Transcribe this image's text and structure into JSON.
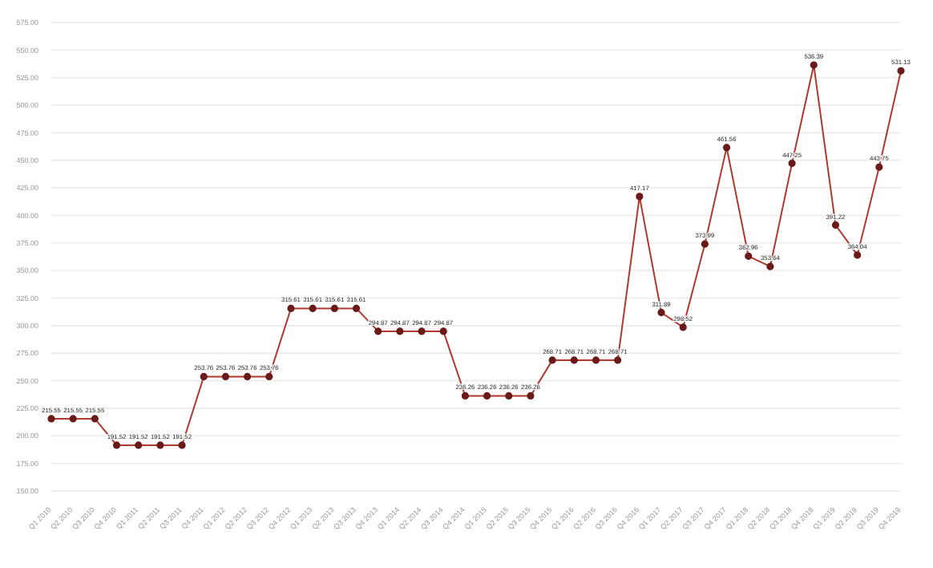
{
  "chart_data": {
    "type": "line",
    "categories": [
      "Q1 2010",
      "Q2 2010",
      "Q3 2010",
      "Q4 2010",
      "Q1 2011",
      "Q2 2011",
      "Q3 2011",
      "Q4 2011",
      "Q1 2012",
      "Q2 2012",
      "Q3 2012",
      "Q4 2012",
      "Q1 2013",
      "Q2 2013",
      "Q3 2013",
      "Q4 2013",
      "Q1 2014",
      "Q2 2014",
      "Q3 2014",
      "Q4 2014",
      "Q1 2015",
      "Q2 2015",
      "Q3 2015",
      "Q4 2015",
      "Q1 2016",
      "Q2 2016",
      "Q3 2016",
      "Q4 2016",
      "Q1 2017",
      "Q2 2017",
      "Q3 2017",
      "Q4 2017",
      "Q1 2018",
      "Q2 2018",
      "Q3 2018",
      "Q4 2018",
      "Q1 2019",
      "Q2 2019",
      "Q3 2019",
      "Q4 2019"
    ],
    "series": [
      {
        "color": "#b0392e",
        "values": [
          215.55,
          215.55,
          215.55,
          191.52,
          191.52,
          191.52,
          191.52,
          253.76,
          253.76,
          253.76,
          253.76,
          315.61,
          315.61,
          315.61,
          315.61,
          294.87,
          294.87,
          294.87,
          294.87,
          236.26,
          236.26,
          236.26,
          236.26,
          268.71,
          268.71,
          268.71,
          268.71,
          417.17,
          311.89,
          298.52,
          373.99,
          461.56,
          362.96,
          353.64,
          447.25,
          536.39,
          391.22,
          364.04,
          443.75,
          531.13
        ]
      }
    ],
    "ylim": [
      150,
      575
    ],
    "yticks": [
      {
        "value": 150,
        "label": "150.00"
      },
      {
        "value": 175,
        "label": "175.00"
      },
      {
        "value": 200,
        "label": "200.00"
      },
      {
        "value": 225,
        "label": "225.00"
      },
      {
        "value": 250,
        "label": "250.00"
      },
      {
        "value": 275,
        "label": "275.00"
      },
      {
        "value": 300,
        "label": "300.00"
      },
      {
        "value": 325,
        "label": "325.00"
      },
      {
        "value": 350,
        "label": "350.00"
      },
      {
        "value": 375,
        "label": "375.00"
      },
      {
        "value": 400,
        "label": "400.00"
      },
      {
        "value": 425,
        "label": "425.00"
      },
      {
        "value": 450,
        "label": "450.00"
      },
      {
        "value": 475,
        "label": "475.00"
      },
      {
        "value": 500,
        "label": "500.00"
      },
      {
        "value": 525,
        "label": "525.00"
      },
      {
        "value": 550,
        "label": "550.00"
      },
      {
        "value": 575,
        "label": "575.00"
      }
    ],
    "grid": "y",
    "marker": "circle",
    "data_labels": true
  }
}
